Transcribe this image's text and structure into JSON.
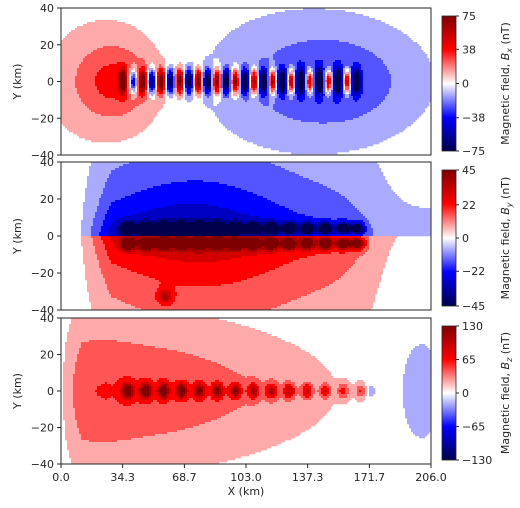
{
  "chart_data": [
    {
      "type": "heatmap",
      "component": "Bx",
      "xlabel": "",
      "ylabel": "Y (km)",
      "xlim": [
        0,
        206
      ],
      "ylim": [
        -40,
        40
      ],
      "y_ticks": [
        "40",
        "20",
        "0",
        "−20",
        "−40"
      ],
      "y_tick_values": [
        40,
        20,
        0,
        -20,
        -40
      ],
      "colorbar": {
        "label_prefix": "Magnetic field, ",
        "symbol": "B",
        "subscript": "x",
        "unit": " (nT)",
        "ticks": [
          "75",
          "38",
          "0",
          "−38",
          "−75"
        ],
        "tick_values": [
          75,
          38,
          0,
          -38,
          -75
        ],
        "vmin": -75,
        "vmax": 75
      },
      "colormap": "seismic",
      "source_x_positions_km": [
        34.3,
        40.2,
        45.4,
        50.5,
        55.7,
        60.9,
        66.1,
        71.2,
        76.4,
        81.6,
        86.8,
        91.9,
        97.1,
        102.3,
        107.5,
        112.6,
        117.8,
        123.0,
        128.2,
        133.3,
        138.5,
        143.7,
        148.9,
        154.0,
        159.2,
        164.4
      ]
    },
    {
      "type": "heatmap",
      "component": "By",
      "xlabel": "",
      "ylabel": "Y (km)",
      "xlim": [
        0,
        206
      ],
      "ylim": [
        -40,
        40
      ],
      "y_ticks": [
        "40",
        "20",
        "0",
        "−20",
        "−40"
      ],
      "y_tick_values": [
        40,
        20,
        0,
        -20,
        -40
      ],
      "colorbar": {
        "label_prefix": "Magnetic field, ",
        "symbol": "B",
        "subscript": "y",
        "unit": " (nT)",
        "ticks": [
          "45",
          "22",
          "0",
          "−22",
          "−45"
        ],
        "tick_values": [
          45,
          22,
          0,
          -22,
          -45
        ],
        "vmin": -45,
        "vmax": 45
      },
      "colormap": "seismic",
      "source_x_positions_km": [
        37.0,
        47.0,
        57.0,
        67.0,
        77.0,
        87.0,
        97.0,
        107.0,
        117.0,
        127.0,
        137.0,
        147.0,
        157.0,
        165.0
      ]
    },
    {
      "type": "heatmap",
      "component": "Bz",
      "xlabel": "X (km)",
      "ylabel": "Y (km)",
      "xlim": [
        0,
        206
      ],
      "ylim": [
        -40,
        40
      ],
      "x_ticks": [
        "0.0",
        "34.3",
        "68.7",
        "103.0",
        "137.3",
        "171.7",
        "206.0"
      ],
      "x_tick_values": [
        0.0,
        34.3,
        68.7,
        103.0,
        137.3,
        171.7,
        206.0
      ],
      "y_ticks": [
        "40",
        "20",
        "0",
        "−20",
        "−40"
      ],
      "y_tick_values": [
        40,
        20,
        0,
        -20,
        -40
      ],
      "colorbar": {
        "label_prefix": "Magnetic field, ",
        "symbol": "B",
        "subscript": "z",
        "unit": " (nT)",
        "ticks": [
          "130",
          "65",
          "0",
          "−65",
          "−130"
        ],
        "tick_values": [
          130,
          65,
          0,
          -65,
          -130
        ],
        "vmin": -130,
        "vmax": 130
      },
      "colormap": "seismic",
      "source_x_positions_km": [
        37.0,
        47.0,
        57.0,
        67.0,
        77.0,
        87.0,
        97.0,
        107.0,
        117.0,
        127.0,
        137.0,
        147.0,
        157.0,
        167.0
      ]
    }
  ]
}
